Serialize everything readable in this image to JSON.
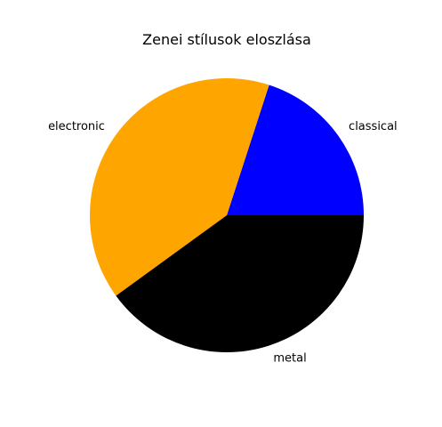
{
  "chart_data": {
    "type": "pie",
    "title": "Zenei stílusok eloszlása",
    "categories": [
      "classical",
      "electronic",
      "metal"
    ],
    "values": [
      20,
      40,
      40
    ],
    "colors": [
      "#0000ff",
      "#ffa500",
      "#000000"
    ],
    "start_angle_deg": 0,
    "direction": "counterclockwise"
  }
}
